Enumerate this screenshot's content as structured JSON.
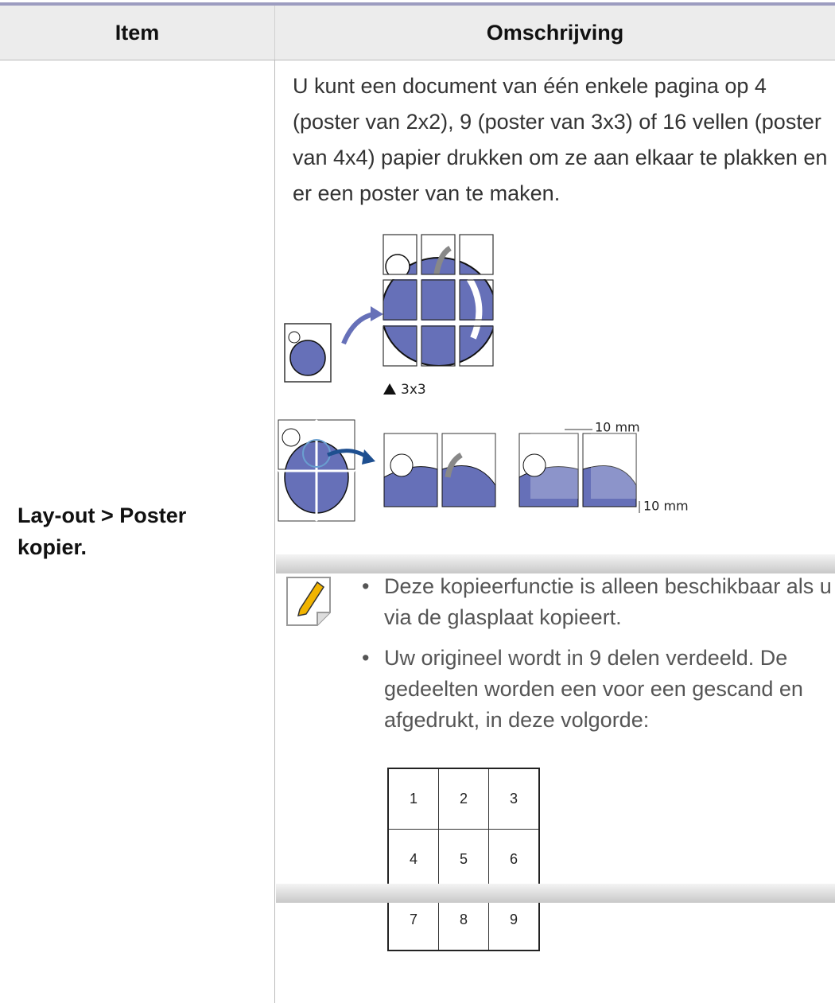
{
  "table": {
    "headers": [
      "Item",
      "Omschrijving"
    ],
    "rows": [
      {
        "item": "Lay-out > Poster kopier.",
        "description": "U kunt een document van één enkele pagina op 4 (poster van 2x2), 9 (poster van 3x3) of 16 vellen (poster van 4x4) papier drukken om ze aan elkaar te plakken en er een poster van te maken.",
        "figure": {
          "caption": "3x3",
          "margin_labels": [
            "10 mm",
            "10 mm"
          ]
        },
        "notes": [
          "Deze kopieerfunctie is alleen beschikbaar als u via de glasplaat kopieert.",
          "Uw origineel wordt in 9 delen verdeeld. De gedeelten worden een voor een gescand en afgedrukt, in deze volgorde:"
        ],
        "order_grid": [
          [
            1,
            2,
            3
          ],
          [
            4,
            5,
            6
          ],
          [
            7,
            8,
            9
          ]
        ]
      }
    ]
  }
}
